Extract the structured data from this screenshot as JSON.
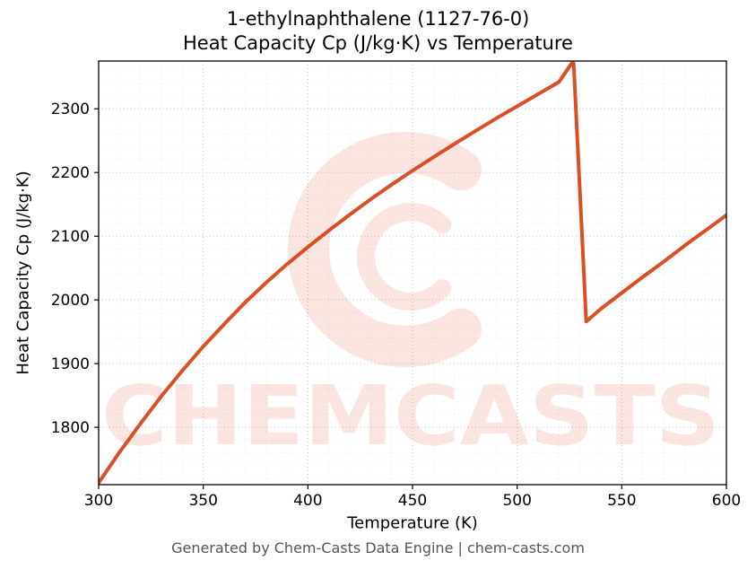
{
  "title_line1": "1-ethylnaphthalene (1127-76-0)",
  "title_line2": "Heat Capacity Cp (J/kg·K) vs Temperature",
  "footer_text": "Generated by Chem-Casts Data Engine | chem-casts.com",
  "watermark": {
    "text": "CHEMCASTS",
    "logo": "c-swirl-logo",
    "color": "#e0502c",
    "text_opacity": 0.14,
    "logo_opacity": 0.15
  },
  "chart_data": {
    "type": "line",
    "title": "1-ethylnaphthalene (1127-76-0) Heat Capacity Cp (J/kg·K) vs Temperature",
    "xlabel": "Temperature (K)",
    "ylabel": "Heat Capacity Cp (J/kg·K)",
    "xlim": [
      300,
      600
    ],
    "ylim": [
      1710,
      2375
    ],
    "xticks": [
      300,
      350,
      400,
      450,
      500,
      550,
      600
    ],
    "yticks": [
      1800,
      1900,
      2000,
      2100,
      2200,
      2300
    ],
    "grid": true,
    "grid_style": "dotted",
    "line_color": "#DB4F27",
    "line_width": 4,
    "legend": "none",
    "series": [
      {
        "name": "Heat Capacity Cp",
        "points": [
          [
            300,
            1713
          ],
          [
            310,
            1761
          ],
          [
            320,
            1806
          ],
          [
            330,
            1849
          ],
          [
            340,
            1889
          ],
          [
            350,
            1927
          ],
          [
            360,
            1962
          ],
          [
            370,
            1996
          ],
          [
            380,
            2027
          ],
          [
            390,
            2056
          ],
          [
            400,
            2083
          ],
          [
            410,
            2109
          ],
          [
            420,
            2134
          ],
          [
            430,
            2158
          ],
          [
            440,
            2181
          ],
          [
            450,
            2203
          ],
          [
            460,
            2224
          ],
          [
            470,
            2245
          ],
          [
            480,
            2265
          ],
          [
            490,
            2285
          ],
          [
            500,
            2304
          ],
          [
            510,
            2323
          ],
          [
            520,
            2342
          ],
          [
            526,
            2371
          ],
          [
            527,
            2371
          ],
          [
            533,
            1966
          ],
          [
            540,
            1986
          ],
          [
            550,
            2011
          ],
          [
            560,
            2036
          ],
          [
            570,
            2060
          ],
          [
            580,
            2085
          ],
          [
            590,
            2109
          ],
          [
            600,
            2133
          ]
        ]
      }
    ]
  }
}
